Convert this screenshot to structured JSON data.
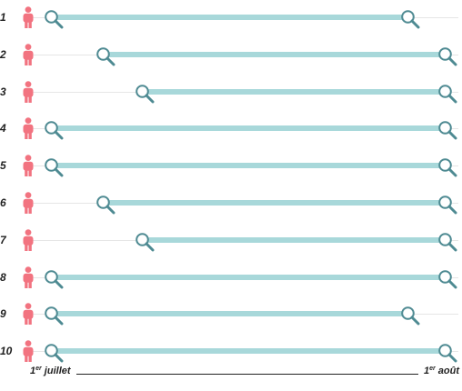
{
  "colors": {
    "person": "#f27380",
    "bar": "#a8d8da",
    "magnifier": "#4e8a92",
    "guide": "#e6e6e6"
  },
  "icons": {
    "row_marker": "person-icon",
    "search_marker": "magnifier-icon"
  },
  "timeline": {
    "start_label": {
      "main": "1",
      "sup": "er",
      "rest": " juillet"
    },
    "end_label": {
      "main": "1",
      "sup": "er",
      "rest": " août"
    }
  },
  "rows": [
    {
      "label": "1",
      "start": 0.0,
      "end": 0.905
    },
    {
      "label": "2",
      "start": 0.131,
      "end": 1.0
    },
    {
      "label": "3",
      "start": 0.23,
      "end": 1.0
    },
    {
      "label": "4",
      "start": 0.0,
      "end": 1.0
    },
    {
      "label": "5",
      "start": 0.0,
      "end": 1.0
    },
    {
      "label": "6",
      "start": 0.131,
      "end": 1.0
    },
    {
      "label": "7",
      "start": 0.23,
      "end": 1.0
    },
    {
      "label": "8",
      "start": 0.0,
      "end": 1.0
    },
    {
      "label": "9",
      "start": 0.0,
      "end": 0.905
    },
    {
      "label": "10",
      "start": 0.0,
      "end": 1.0
    }
  ]
}
